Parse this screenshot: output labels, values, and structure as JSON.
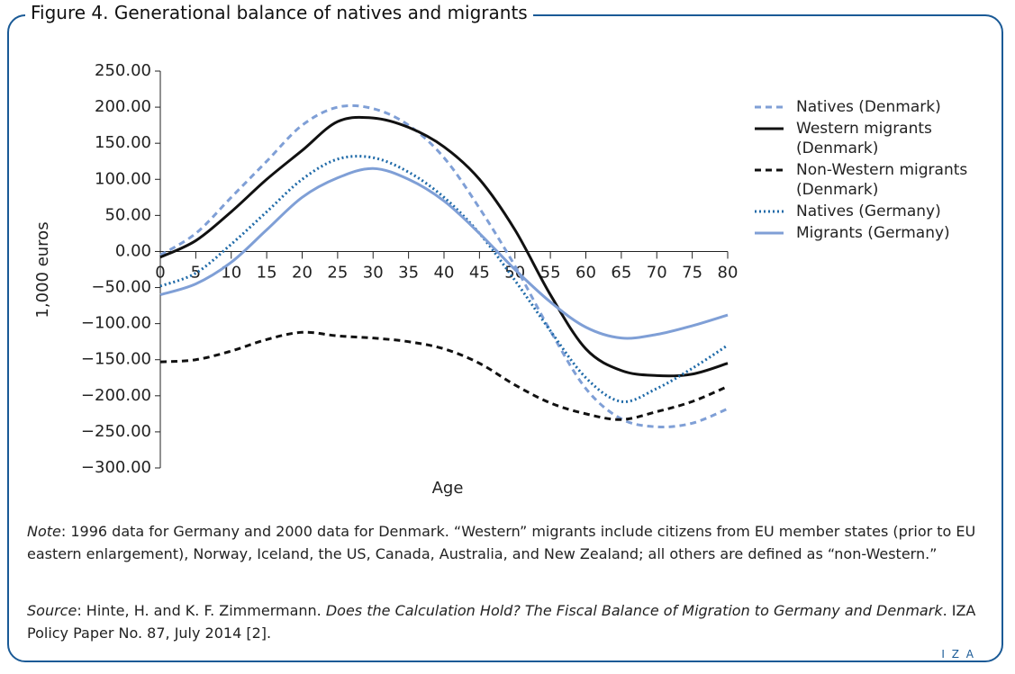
{
  "chart_data": {
    "type": "line",
    "title": "Figure 4. Generational balance of natives and migrants",
    "xlabel": "Age",
    "ylabel": "1,000 euros",
    "x": [
      0,
      5,
      10,
      15,
      20,
      25,
      30,
      35,
      40,
      45,
      50,
      55,
      60,
      65,
      70,
      75,
      80
    ],
    "xlim": [
      0,
      80
    ],
    "xticks": [
      0,
      5,
      10,
      15,
      20,
      25,
      30,
      35,
      40,
      45,
      50,
      55,
      60,
      65,
      70,
      75,
      80
    ],
    "ylim": [
      -300,
      250
    ],
    "yticks": [
      {
        "value": -300,
        "label": "−300.00"
      },
      {
        "value": -250,
        "label": "−250.00"
      },
      {
        "value": -200,
        "label": "−200.00"
      },
      {
        "value": -150,
        "label": "−150.00"
      },
      {
        "value": -100,
        "label": "−100.00"
      },
      {
        "value": -50,
        "label": "−50.00"
      },
      {
        "value": 0,
        "label": "0.00"
      },
      {
        "value": 50,
        "label": "50.00"
      },
      {
        "value": 100,
        "label": "100.00"
      },
      {
        "value": 150,
        "label": "150.00"
      },
      {
        "value": 200,
        "label": "200.00"
      },
      {
        "value": 250,
        "label": "250.00"
      }
    ],
    "series": [
      {
        "name": "Natives (Denmark)",
        "color": "#7f9fd6",
        "dash": "dashed",
        "values": [
          -5,
          25,
          75,
          125,
          175,
          200,
          198,
          175,
          130,
          60,
          -20,
          -110,
          -190,
          -232,
          -243,
          -238,
          -218
        ]
      },
      {
        "name": "Western migrants (Denmark)",
        "color": "#111111",
        "dash": "solid",
        "values": [
          -8,
          15,
          55,
          100,
          140,
          180,
          185,
          172,
          145,
          100,
          30,
          -60,
          -135,
          -165,
          -172,
          -170,
          -155
        ]
      },
      {
        "name": "Non-Western migrants (Denmark)",
        "color": "#111111",
        "dash": "dashed",
        "values": [
          -153,
          -150,
          -138,
          -122,
          -112,
          -117,
          -120,
          -125,
          -135,
          -155,
          -185,
          -210,
          -225,
          -233,
          -222,
          -208,
          -187
        ]
      },
      {
        "name": "Natives (Germany)",
        "color": "#1f6aa8",
        "dash": "dotted",
        "values": [
          -48,
          -30,
          10,
          55,
          100,
          128,
          130,
          110,
          75,
          25,
          -40,
          -110,
          -175,
          -208,
          -190,
          -162,
          -130
        ]
      },
      {
        "name": "Migrants (Germany)",
        "color": "#7f9fd6",
        "dash": "solid",
        "values": [
          -60,
          -45,
          -15,
          30,
          75,
          102,
          115,
          100,
          70,
          25,
          -25,
          -70,
          -105,
          -120,
          -115,
          -103,
          -88
        ]
      }
    ]
  },
  "note": [
    {
      "text": "Note",
      "italic": true
    },
    {
      "text": ": 1996 data for Germany and 2000 data for Denmark. “Western” migrants include citizens from EU member states (prior to EU eastern enlargement), Norway, Iceland, the US, Canada, Australia, and New Zealand; all others are defined as “non-Western.”",
      "italic": false
    }
  ],
  "source": [
    {
      "text": "Source",
      "italic": true
    },
    {
      "text": ": Hinte, H. and K. F. Zimmermann. ",
      "italic": false
    },
    {
      "text": "Does the Calculation Hold? The Fiscal Balance of Migration to Germany and Denmark",
      "italic": true
    },
    {
      "text": ". IZA Policy Paper No. 87, July 2014 [2].",
      "italic": false
    }
  ],
  "logo": "I Z A"
}
